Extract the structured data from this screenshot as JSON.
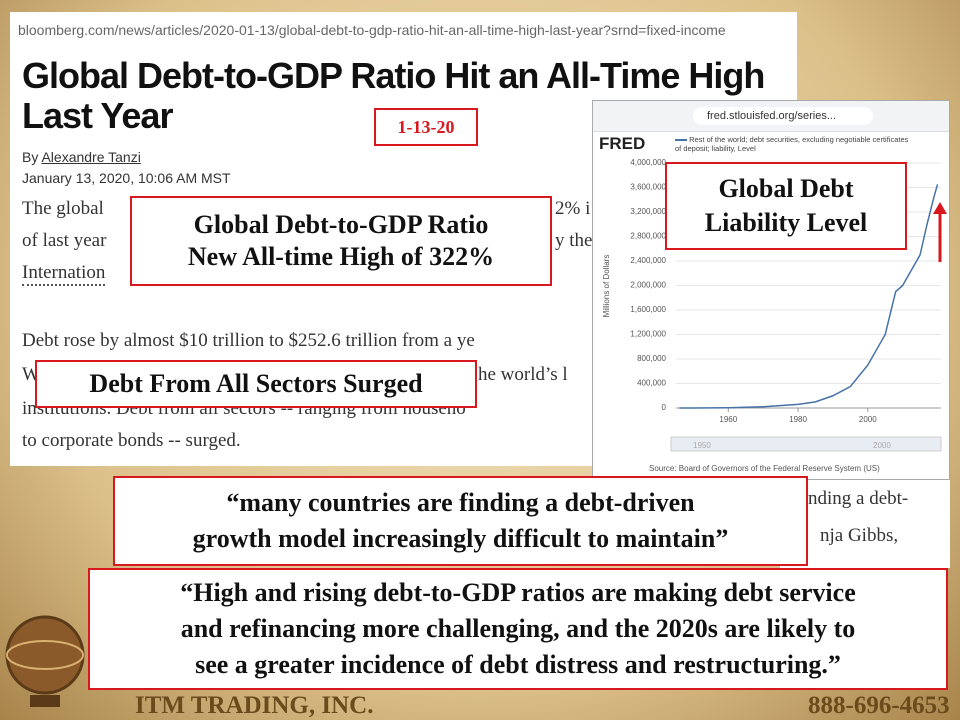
{
  "article": {
    "url": "bloomberg.com/news/articles/2020-01-13/global-debt-to-gdp-ratio-hit-an-all-time-high-last-year?srnd=fixed-income",
    "headline": "Global Debt-to-GDP Ratio Hit an All-Time High Last Year",
    "byline_prefix": "By",
    "author": "Alexandre Tanzi",
    "date": "January 13, 2020, 10:06 AM MST",
    "fragments": [
      "The global",
      "2% i",
      "of last year",
      "y the",
      "Internation",
      "Debt rose by almost $10 trillion to $252.6 trillion from a ye",
      "W",
      "he world’s l",
      "institutions. Debt from all sectors -- ranging from househo",
      "to corporate bonds -- surged."
    ]
  },
  "second_screenshot": {
    "fragments": [
      "nding a debt-",
      "nja Gibbs,"
    ]
  },
  "fred": {
    "url": "fred.stlouisfed.org/series...",
    "logo": "FRED",
    "y_axis_label": "Millions of Dollars",
    "slider_labels": [
      "1950",
      "2000"
    ],
    "source": "Source: Board of Governors of the Federal Reserve System (US)"
  },
  "chart_data": {
    "type": "line",
    "xlim": [
      1945,
      2021
    ],
    "xticks": [
      1960,
      1980,
      2000
    ],
    "ylim": [
      0,
      4000000
    ],
    "yticks": [
      0,
      {
        "value": 400000,
        "label": "400,000"
      },
      {
        "value": 800000,
        "label": "800,000"
      },
      {
        "value": 1200000,
        "label": "1,200,000"
      },
      {
        "value": 1600000,
        "label": "1,600,000"
      },
      {
        "value": 2000000,
        "label": "2,000,000"
      },
      {
        "value": 2400000,
        "label": "2,400,000"
      },
      {
        "value": 2800000,
        "label": "2,800,000"
      },
      {
        "value": 3200000,
        "label": "3,200,000"
      },
      {
        "value": 3600000,
        "label": "3,600,000"
      },
      {
        "value": 4000000,
        "label": "4,000,000"
      }
    ],
    "grid": true,
    "x": [
      1946,
      1950,
      1960,
      1970,
      1980,
      1985,
      1990,
      1995,
      2000,
      2005,
      2008,
      2010,
      2013,
      2015,
      2017,
      2019,
      2020
    ],
    "series": [
      {
        "name": "Rest of the world; debt securities, excluding negotiable certificates of deposit; liability, Level",
        "color": "#4572a7",
        "values": [
          0,
          0,
          5000,
          20000,
          60000,
          100000,
          200000,
          350000,
          700000,
          1200000,
          1900000,
          2000000,
          2300000,
          2500000,
          3000000,
          3450000,
          3650000
        ]
      }
    ]
  },
  "callouts": {
    "date": "1-13-20",
    "ratio_line1": "Global Debt-to-GDP Ratio",
    "ratio_line2": "New All-time High of 322%",
    "sectors": "Debt From All Sectors Surged",
    "fred_line1": "Global Debt",
    "fred_line2": "Liability Level",
    "quote1_line1": "“many countries are finding a debt-driven",
    "quote1_line2": "growth model increasingly difficult to maintain”",
    "quote2_line1": "“High and rising debt-to-GDP ratios are making debt service",
    "quote2_line2": "and refinancing more challenging, and the 2020s are likely to",
    "quote2_line3": "see a greater incidence of debt distress and restructuring.”"
  },
  "footer": {
    "company": "ITM TRADING, INC.",
    "phone": "888-696-4653"
  }
}
